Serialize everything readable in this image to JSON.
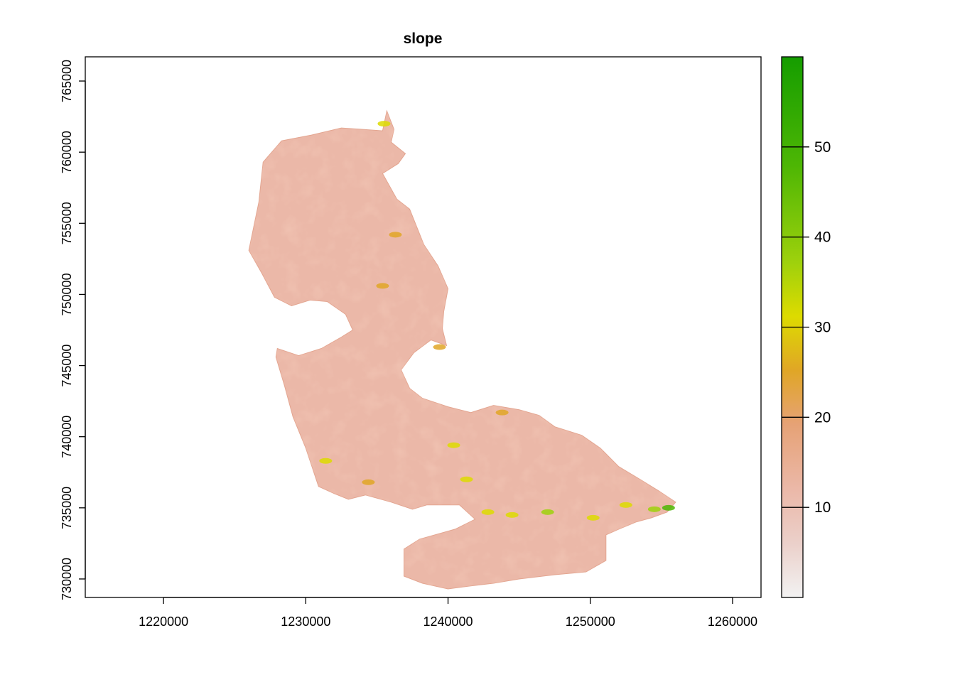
{
  "chart_data": {
    "type": "heatmap",
    "title": "slope",
    "xlabel": "",
    "ylabel": "",
    "xlim": [
      1214500,
      1262000
    ],
    "ylim": [
      728700,
      766700
    ],
    "x_ticks": [
      1220000,
      1230000,
      1240000,
      1250000,
      1260000
    ],
    "y_ticks": [
      730000,
      735000,
      740000,
      745000,
      750000,
      755000,
      760000,
      765000
    ],
    "legend": {
      "placement": "right",
      "range": [
        0,
        60
      ],
      "ticks": [
        10,
        20,
        30,
        40,
        50
      ],
      "colors": [
        "#F2F2F2",
        "#EBB8A8",
        "#E6A276",
        "#E0A626",
        "#DDDB00",
        "#9ED10C",
        "#4DB604",
        "#159D00"
      ]
    },
    "grid": false,
    "region_outline": [
      [
        1226000,
        753100
      ],
      [
        1226700,
        756500
      ],
      [
        1227000,
        759300
      ],
      [
        1228300,
        760800
      ],
      [
        1230400,
        761200
      ],
      [
        1232500,
        761700
      ],
      [
        1234000,
        761600
      ],
      [
        1235400,
        761500
      ],
      [
        1235700,
        762900
      ],
      [
        1236200,
        761600
      ],
      [
        1236000,
        760700
      ],
      [
        1237000,
        759900
      ],
      [
        1236500,
        759200
      ],
      [
        1235400,
        758500
      ],
      [
        1236400,
        756700
      ],
      [
        1237300,
        756000
      ],
      [
        1238300,
        753500
      ],
      [
        1239300,
        752000
      ],
      [
        1240000,
        750400
      ],
      [
        1239700,
        748800
      ],
      [
        1239600,
        747600
      ],
      [
        1239900,
        746400
      ],
      [
        1238800,
        746800
      ],
      [
        1237600,
        745900
      ],
      [
        1236700,
        744700
      ],
      [
        1237300,
        743400
      ],
      [
        1238200,
        742700
      ],
      [
        1240000,
        742100
      ],
      [
        1241600,
        741700
      ],
      [
        1243200,
        742200
      ],
      [
        1245000,
        741900
      ],
      [
        1246400,
        741500
      ],
      [
        1247500,
        740700
      ],
      [
        1249400,
        740100
      ],
      [
        1250700,
        739200
      ],
      [
        1252000,
        737900
      ],
      [
        1253500,
        737000
      ],
      [
        1254800,
        736200
      ],
      [
        1256000,
        735400
      ],
      [
        1255400,
        734700
      ],
      [
        1254300,
        734300
      ],
      [
        1253200,
        734000
      ],
      [
        1252000,
        733500
      ],
      [
        1251100,
        733100
      ],
      [
        1251100,
        731300
      ],
      [
        1249700,
        730500
      ],
      [
        1247500,
        730300
      ],
      [
        1245000,
        730000
      ],
      [
        1243200,
        729700
      ],
      [
        1241500,
        729500
      ],
      [
        1240000,
        729300
      ],
      [
        1238200,
        729700
      ],
      [
        1236900,
        730200
      ],
      [
        1236900,
        732100
      ],
      [
        1238000,
        732800
      ],
      [
        1240500,
        733500
      ],
      [
        1241900,
        734200
      ],
      [
        1240800,
        735200
      ],
      [
        1238500,
        735200
      ],
      [
        1237500,
        734900
      ],
      [
        1236000,
        735400
      ],
      [
        1234200,
        735900
      ],
      [
        1233000,
        735600
      ],
      [
        1232000,
        736000
      ],
      [
        1230900,
        736500
      ],
      [
        1230000,
        739200
      ],
      [
        1229100,
        741400
      ],
      [
        1228500,
        743600
      ],
      [
        1227900,
        745600
      ],
      [
        1228000,
        746200
      ],
      [
        1229500,
        745700
      ],
      [
        1231100,
        746200
      ],
      [
        1232500,
        747000
      ],
      [
        1233300,
        747500
      ],
      [
        1232800,
        748600
      ],
      [
        1231500,
        749500
      ],
      [
        1230300,
        749600
      ],
      [
        1229000,
        749200
      ],
      [
        1227800,
        749800
      ],
      [
        1226900,
        751500
      ]
    ],
    "steep_zones": [
      {
        "x": 1254500,
        "y": 734900,
        "value": 42
      },
      {
        "x": 1255500,
        "y": 735000,
        "value": 55
      },
      {
        "x": 1247000,
        "y": 734700,
        "value": 40
      },
      {
        "x": 1244500,
        "y": 734500,
        "value": 35
      },
      {
        "x": 1242800,
        "y": 734700,
        "value": 32
      },
      {
        "x": 1250200,
        "y": 734300,
        "value": 34
      },
      {
        "x": 1252500,
        "y": 735200,
        "value": 38
      },
      {
        "x": 1235500,
        "y": 762000,
        "value": 30
      },
      {
        "x": 1231400,
        "y": 738300,
        "value": 30
      },
      {
        "x": 1234400,
        "y": 736800,
        "value": 28
      },
      {
        "x": 1239400,
        "y": 746300,
        "value": 27
      },
      {
        "x": 1236300,
        "y": 754200,
        "value": 25
      },
      {
        "x": 1243800,
        "y": 741700,
        "value": 26
      },
      {
        "x": 1235400,
        "y": 750600,
        "value": 26
      },
      {
        "x": 1240400,
        "y": 739400,
        "value": 30
      },
      {
        "x": 1241300,
        "y": 737000,
        "value": 32
      }
    ]
  }
}
